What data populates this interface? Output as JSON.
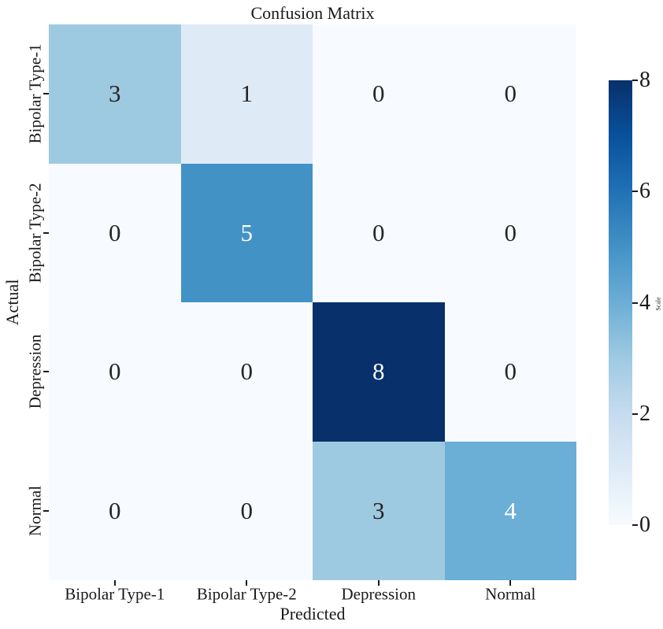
{
  "figure": {
    "background_color": "#ffffff",
    "text_color": "#1a1a1a"
  },
  "chart_data": {
    "type": "heatmap",
    "title": "Confusion Matrix",
    "xlabel": "Predicted",
    "ylabel": "Actual",
    "x_categories": [
      "Bipolar Type-1",
      "Bipolar Type-2",
      "Depression",
      "Normal"
    ],
    "y_categories": [
      "Bipolar Type-1",
      "Bipolar Type-2",
      "Depression",
      "Normal"
    ],
    "values": [
      [
        3,
        1,
        0,
        0
      ],
      [
        0,
        5,
        0,
        0
      ],
      [
        0,
        0,
        8,
        0
      ],
      [
        0,
        0,
        3,
        4
      ]
    ],
    "vmin": 0,
    "vmax": 8,
    "colormap": "Blues",
    "colormap_stops": [
      "#f7fbff",
      "#deebf7",
      "#c6dbef",
      "#9ecae1",
      "#6baed6",
      "#4292c6",
      "#2171b5",
      "#08519c",
      "#08306b"
    ],
    "value_colors": {
      "0": "#f7fbff",
      "1": "#deebf7",
      "3": "#9ecae1",
      "4": "#6baed6",
      "5": "#4292c6",
      "8": "#08306b"
    },
    "light_text_values": [
      4,
      5,
      8
    ],
    "annotation_dark_color": "#262626",
    "annotation_light_color": "#ffffff",
    "grid": false,
    "annotations": true,
    "colorbar": {
      "label": "Scale",
      "ticks": [
        0,
        2,
        4,
        6,
        8
      ],
      "position": "right"
    }
  }
}
